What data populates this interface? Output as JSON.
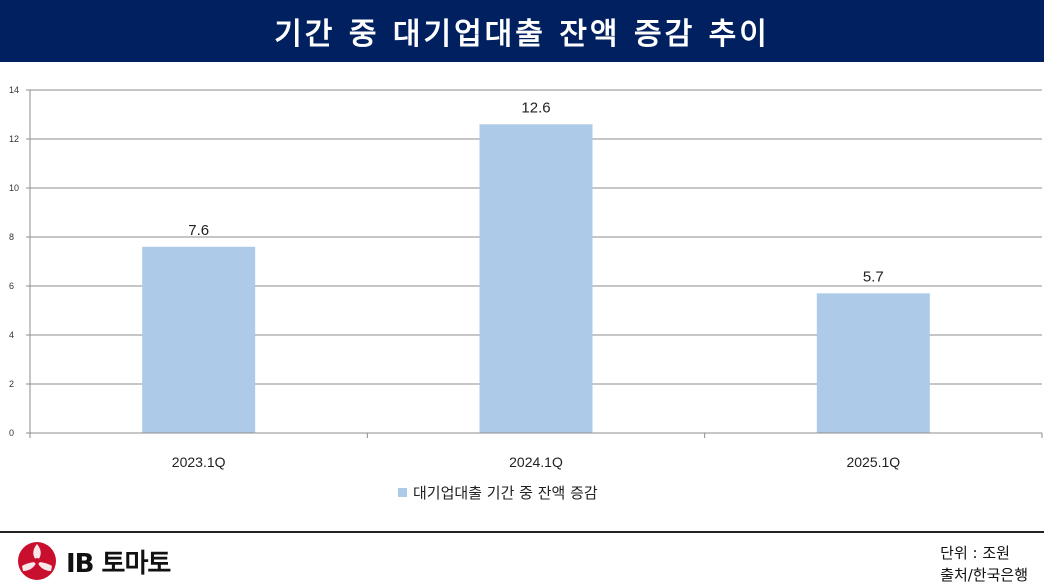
{
  "header": {
    "title": "기간 중 대기업대출 잔액 증감 추이"
  },
  "chart_data": {
    "type": "bar",
    "categories": [
      "2023.1Q",
      "2024.1Q",
      "2025.1Q"
    ],
    "series": [
      {
        "name": "대기업대출 기간 중 잔액 증감",
        "values": [
          7.6,
          12.6,
          5.7
        ],
        "color": "#adcbe8"
      }
    ],
    "data_labels": [
      "7.6",
      "12.6",
      "5.7"
    ],
    "ylim": [
      0,
      14
    ],
    "yticks": [
      0,
      2,
      4,
      6,
      8,
      10,
      12,
      14
    ],
    "grid": true,
    "legend_position": "bottom"
  },
  "footer": {
    "logo_text": "IB 토마토",
    "unit": "단위 : 조원",
    "source": "출처/한국은행"
  }
}
